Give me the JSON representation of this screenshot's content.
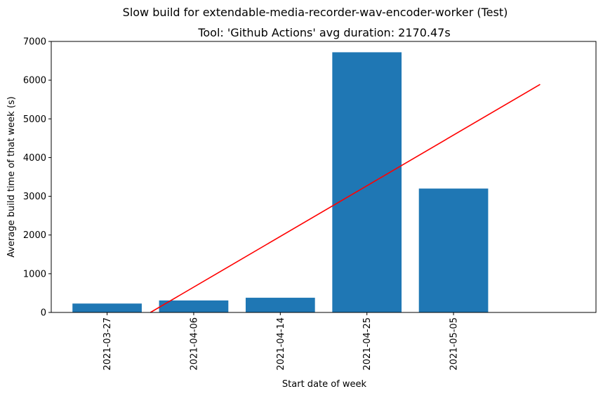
{
  "suptitle": "Slow build for extendable-media-recorder-wav-encoder-worker (Test)",
  "chart_data": {
    "type": "bar",
    "title": "Tool: 'Github Actions' avg duration: 2170.47s",
    "xlabel": "Start date of week",
    "ylabel": "Average build time of that week (s)",
    "categories": [
      "2021-03-27",
      "2021-04-06",
      "2021-04-14",
      "2021-04-25",
      "2021-05-05"
    ],
    "values": [
      230,
      310,
      380,
      6720,
      3200
    ],
    "bar_color": "#1f77b4",
    "ylim": [
      0,
      7000
    ],
    "yticks": [
      0,
      1000,
      2000,
      3000,
      4000,
      5000,
      6000,
      7000
    ],
    "trend_line": {
      "color": "#ff0000",
      "x": [
        0.5,
        5.0
      ],
      "y": [
        0,
        5890
      ]
    },
    "grid": false
  }
}
